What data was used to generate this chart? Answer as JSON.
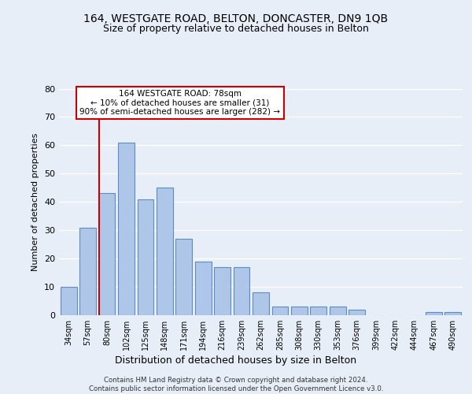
{
  "title1": "164, WESTGATE ROAD, BELTON, DONCASTER, DN9 1QB",
  "title2": "Size of property relative to detached houses in Belton",
  "xlabel": "Distribution of detached houses by size in Belton",
  "ylabel": "Number of detached properties",
  "bar_labels": [
    "34sqm",
    "57sqm",
    "80sqm",
    "102sqm",
    "125sqm",
    "148sqm",
    "171sqm",
    "194sqm",
    "216sqm",
    "239sqm",
    "262sqm",
    "285sqm",
    "308sqm",
    "330sqm",
    "353sqm",
    "376sqm",
    "399sqm",
    "422sqm",
    "444sqm",
    "467sqm",
    "490sqm"
  ],
  "bar_values": [
    10,
    31,
    43,
    61,
    41,
    45,
    27,
    19,
    17,
    17,
    8,
    3,
    3,
    3,
    3,
    2,
    0,
    0,
    0,
    1,
    1
  ],
  "bar_color": "#aec6e8",
  "bar_edge_color": "#5b8cc8",
  "vline_x_index": 2,
  "vline_color": "#cc0000",
  "annotation_text": "164 WESTGATE ROAD: 78sqm\n← 10% of detached houses are smaller (31)\n90% of semi-detached houses are larger (282) →",
  "annotation_box_color": "#ffffff",
  "annotation_box_edge": "#cc0000",
  "ylim": [
    0,
    80
  ],
  "yticks": [
    0,
    10,
    20,
    30,
    40,
    50,
    60,
    70,
    80
  ],
  "footer": "Contains HM Land Registry data © Crown copyright and database right 2024.\nContains public sector information licensed under the Open Government Licence v3.0.",
  "bg_color": "#e8eef8",
  "grid_color": "#ffffff",
  "title1_fontsize": 10,
  "title2_fontsize": 9,
  "xlabel_fontsize": 9,
  "ylabel_fontsize": 8
}
